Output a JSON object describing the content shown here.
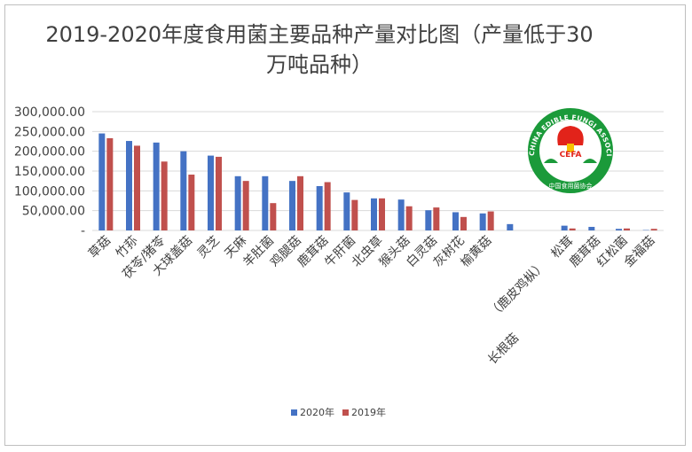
{
  "chart_data": {
    "type": "bar",
    "title": "2019-2020年度食用菌主要品种产量对比图（产量低于30万吨品种）",
    "categories": [
      "草菇",
      "竹荪",
      "茯苓/猪苓",
      "大球盖菇",
      "灵芝",
      "天麻",
      "羊肚菌",
      "鸡腿菇",
      "鹿茸菇",
      "牛肝菌",
      "北虫草",
      "猴头菇",
      "白灵菇",
      "灰树花",
      "榆黄菇",
      "长根菇",
      "（鹿皮鸡枞）",
      "松茸",
      "鹿茸菇",
      "红松菌",
      "金福菇"
    ],
    "series": [
      {
        "name": "2020年",
        "color": "#4472c4",
        "values": [
          245000,
          226000,
          222000,
          200000,
          189000,
          137000,
          137000,
          125000,
          112000,
          96000,
          81000,
          78000,
          51000,
          46000,
          43000,
          16000,
          0,
          12000,
          9000,
          4000,
          1000
        ]
      },
      {
        "name": "2019年",
        "color": "#c0504d",
        "values": [
          233000,
          214000,
          174000,
          141000,
          186000,
          125000,
          69000,
          137000,
          122000,
          77000,
          81000,
          61000,
          58000,
          34000,
          48000,
          0,
          0,
          5000,
          0,
          5000,
          4000
        ]
      }
    ],
    "ylim": [
      0,
      300000
    ],
    "yticks": [
      "-",
      "50,000.00",
      "100,000.00",
      "150,000.00",
      "200,000.00",
      "250,000.00",
      "300,000.00"
    ],
    "grid": true,
    "legend_position": "bottom"
  },
  "logo": {
    "ring_text": "CHINA EDIBLE FUNGI ASSOCIATION",
    "abbr": "CEFA",
    "bottom_text": "中国食用菌协会",
    "colors": {
      "green": "#1b9a3a",
      "red": "#e2231a",
      "yellow": "#f6c200"
    }
  }
}
